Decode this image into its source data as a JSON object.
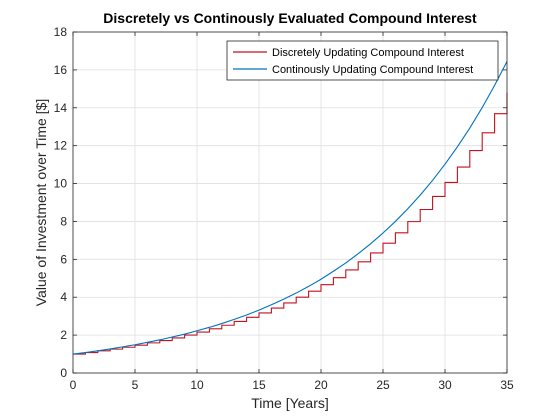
{
  "chart_data": {
    "type": "line",
    "title": "Discretely vs Continously Evaluated Compound Interest",
    "xlabel": "Time [Years]",
    "ylabel": "Value of Investment over Time [$]",
    "xlim": [
      0,
      35
    ],
    "ylim": [
      0,
      18
    ],
    "xticks": [
      0,
      5,
      10,
      15,
      20,
      25,
      30,
      35
    ],
    "yticks": [
      0,
      2,
      4,
      6,
      8,
      10,
      12,
      14,
      16,
      18
    ],
    "grid": true,
    "legend_position": "top-right",
    "series": [
      {
        "name": "Discretely Updating Compound Interest",
        "color": "#c1121f",
        "style": "stairs",
        "x": [
          0,
          1,
          2,
          3,
          4,
          5,
          6,
          7,
          8,
          9,
          10,
          11,
          12,
          13,
          14,
          15,
          16,
          17,
          18,
          19,
          20,
          21,
          22,
          23,
          24,
          25,
          26,
          27,
          28,
          29,
          30,
          31,
          32,
          33,
          34,
          35
        ],
        "y": [
          1.0,
          1.08,
          1.17,
          1.26,
          1.36,
          1.47,
          1.59,
          1.71,
          1.85,
          2.0,
          2.16,
          2.33,
          2.52,
          2.72,
          2.94,
          3.17,
          3.43,
          3.7,
          4.0,
          4.32,
          4.66,
          5.03,
          5.44,
          5.87,
          6.34,
          6.85,
          7.4,
          7.99,
          8.63,
          9.32,
          10.06,
          10.87,
          11.74,
          12.68,
          13.69,
          14.79
        ]
      },
      {
        "name": "Continously Updating Compound Interest",
        "color": "#0072bd",
        "style": "line",
        "x": [
          0,
          1,
          2,
          3,
          4,
          5,
          6,
          7,
          8,
          9,
          10,
          11,
          12,
          13,
          14,
          15,
          16,
          17,
          18,
          19,
          20,
          21,
          22,
          23,
          24,
          25,
          26,
          27,
          28,
          29,
          30,
          31,
          32,
          33,
          34,
          35
        ],
        "y": [
          1.0,
          1.08,
          1.17,
          1.27,
          1.38,
          1.49,
          1.62,
          1.75,
          1.9,
          2.05,
          2.23,
          2.41,
          2.61,
          2.83,
          3.06,
          3.32,
          3.6,
          3.9,
          4.22,
          4.57,
          4.95,
          5.37,
          5.81,
          6.3,
          6.82,
          7.39,
          8.0,
          8.67,
          9.39,
          10.17,
          11.02,
          11.94,
          12.93,
          14.01,
          15.18,
          16.44
        ]
      }
    ]
  }
}
